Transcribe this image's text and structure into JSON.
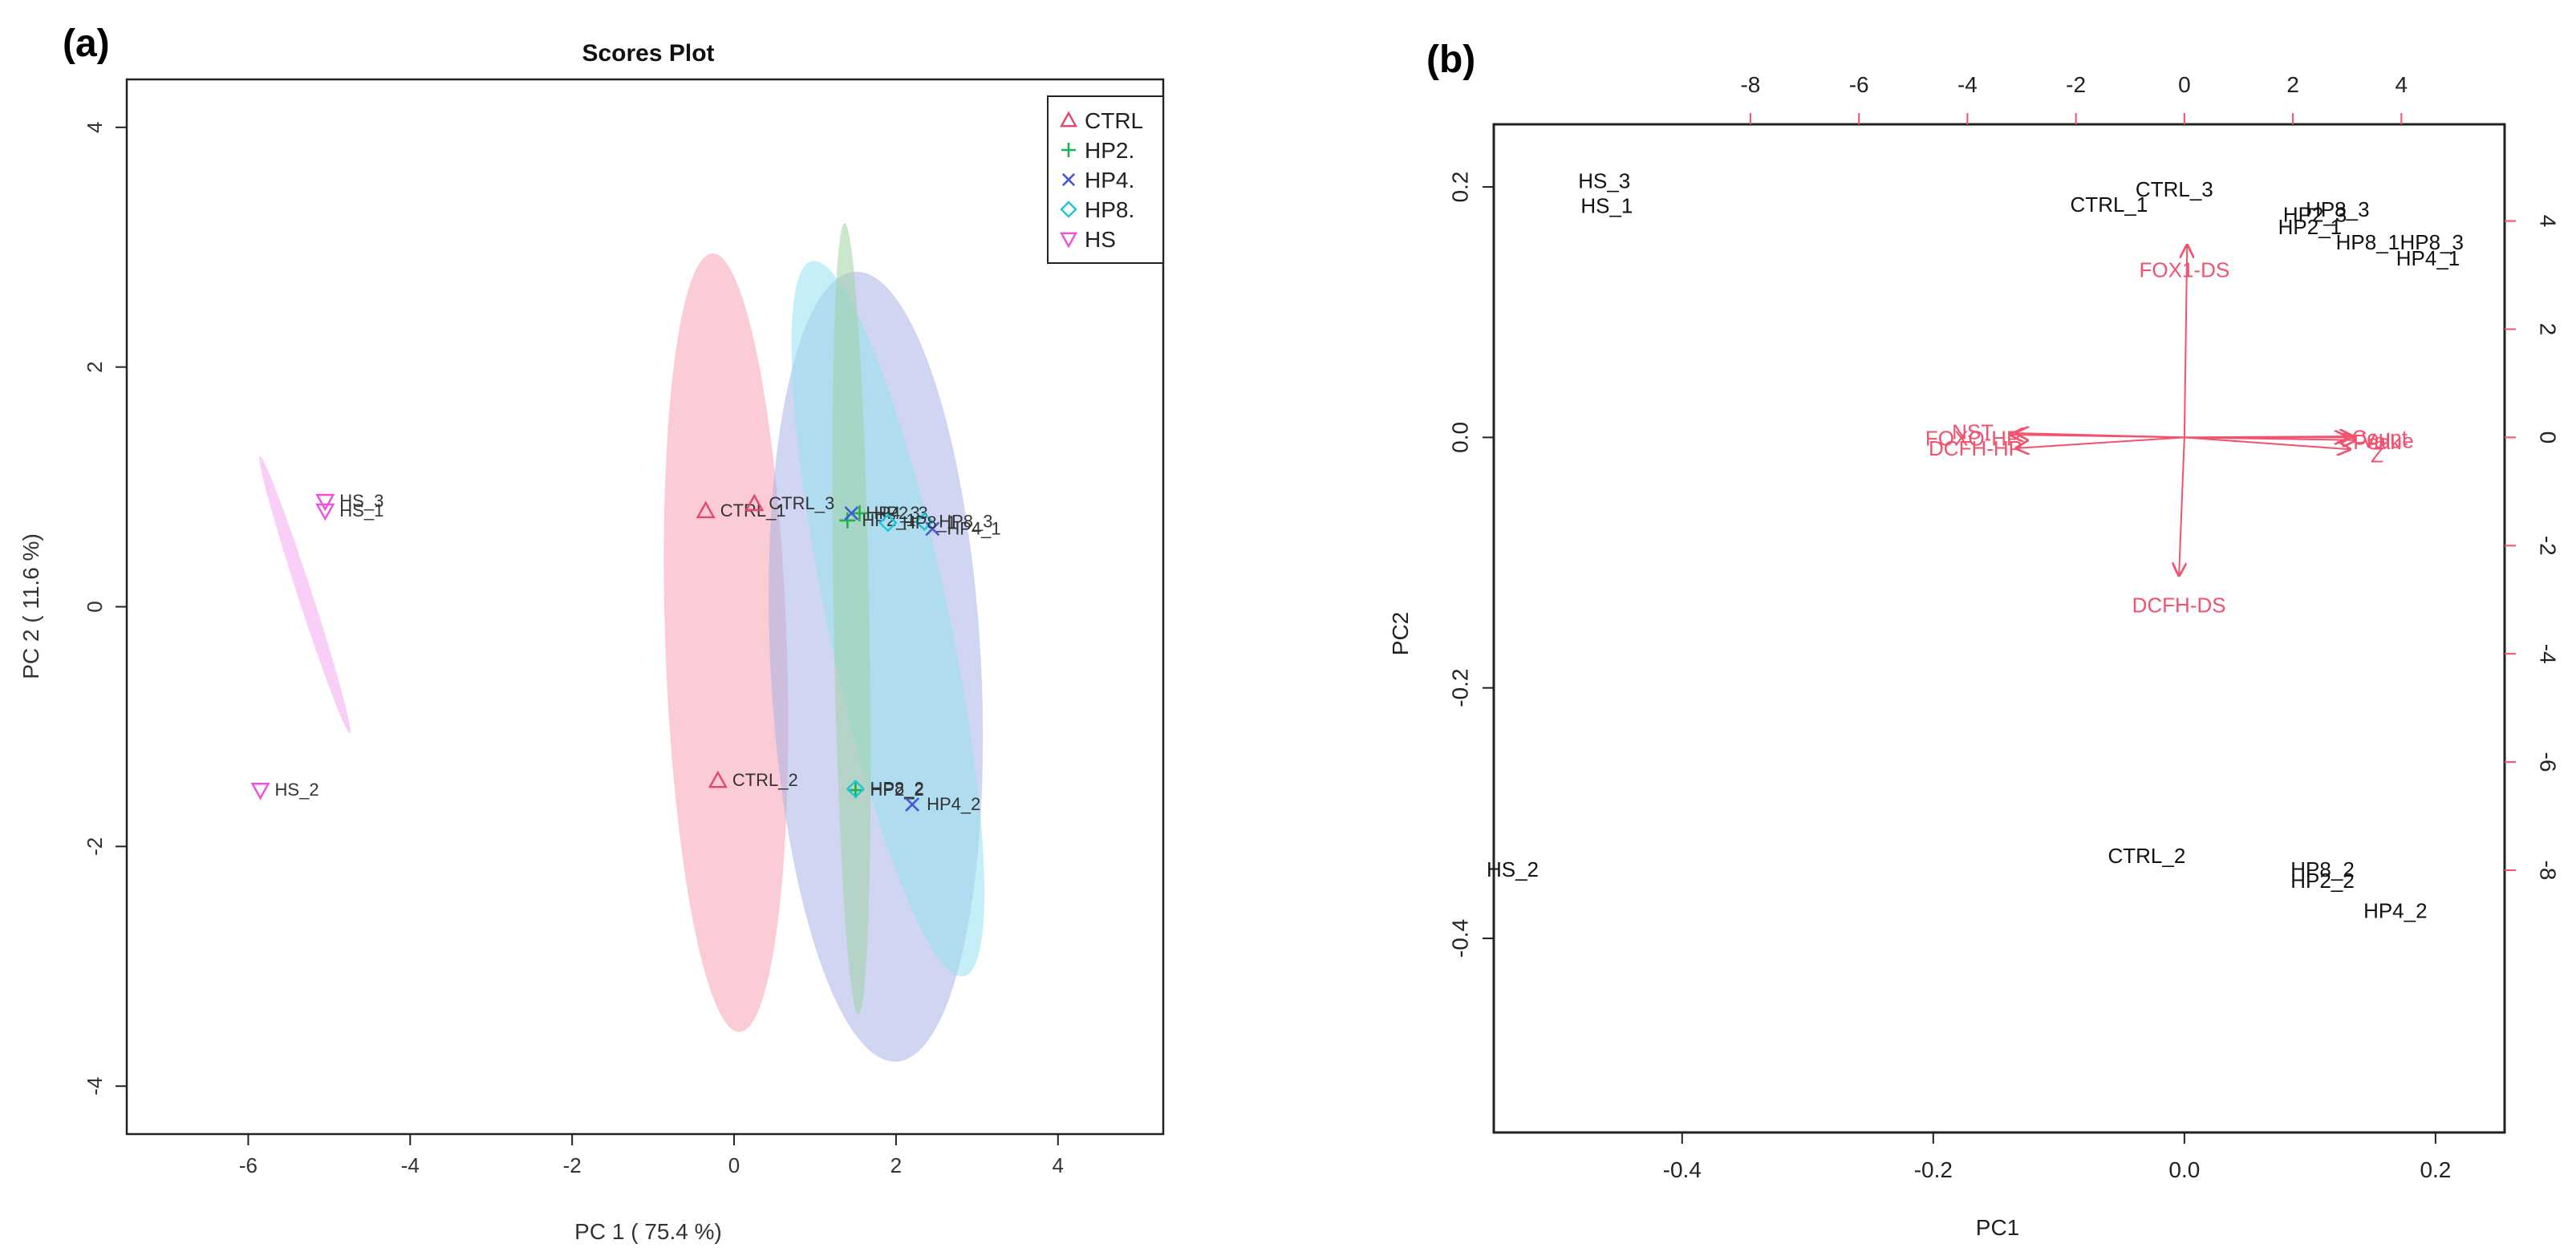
{
  "colors": {
    "CTRL": "#e8456a",
    "HP2": "#1db34a",
    "HP4": "#4358d6",
    "HP8": "#1cc6d6",
    "HS": "#ee4fe0",
    "biplot_red": "#f2526d",
    "ellipse_CTRL": "#f7a3b5",
    "ellipse_HP2": "#9ed4a4",
    "ellipse_HP4": "#a9b2e6",
    "ellipse_HP8": "#96e2ee",
    "ellipse_HS": "#f6a8f0",
    "black": "#111111"
  },
  "chart_data": [
    {
      "type": "scatter",
      "panel_label": "(a)",
      "title": "Scores Plot",
      "xlabel": "PC 1 ( 75.4 %)",
      "ylabel": "PC 2 ( 11.6 %)",
      "xlim": [
        -7.5,
        5.3
      ],
      "ylim": [
        -4.4,
        4.4
      ],
      "xticks": [
        -6,
        -4,
        -2,
        0,
        2,
        4
      ],
      "yticks": [
        -4,
        -2,
        0,
        2,
        4
      ],
      "grid": false,
      "legend_position": "top-right",
      "legend": [
        {
          "label": "CTRL",
          "symbol": "triangle-up",
          "group": "CTRL"
        },
        {
          "label": "HP2.",
          "symbol": "plus",
          "group": "HP2"
        },
        {
          "label": "HP4.",
          "symbol": "cross",
          "group": "HP4"
        },
        {
          "label": "HP8.",
          "symbol": "diamond",
          "group": "HP8"
        },
        {
          "label": "HS",
          "symbol": "triangle-down",
          "group": "HS"
        }
      ],
      "ellipses": [
        {
          "group": "HS",
          "cx": -5.3,
          "cy": 0.1,
          "rx": 1.8,
          "ry": 0.06,
          "angle_deg": 72
        },
        {
          "group": "CTRL",
          "cx": -0.1,
          "cy": -0.3,
          "rx": 0.75,
          "ry": 3.25,
          "angle_deg": -2
        },
        {
          "group": "HP4",
          "cx": 1.75,
          "cy": -0.5,
          "rx": 1.3,
          "ry": 3.3,
          "angle_deg": -3
        },
        {
          "group": "HP8",
          "cx": 1.9,
          "cy": -0.1,
          "rx": 0.75,
          "ry": 3.05,
          "angle_deg": -12
        },
        {
          "group": "HP2",
          "cx": 1.45,
          "cy": -0.1,
          "rx": 0.22,
          "ry": 3.3,
          "angle_deg": -1
        }
      ],
      "points": [
        {
          "label": "HS_3",
          "x": -5.05,
          "y": 0.88,
          "group": "HS",
          "symbol": "triangle-down"
        },
        {
          "label": "HS_1",
          "x": -5.05,
          "y": 0.8,
          "group": "HS",
          "symbol": "triangle-down"
        },
        {
          "label": "HS_2",
          "x": -5.85,
          "y": -1.53,
          "group": "HS",
          "symbol": "triangle-down"
        },
        {
          "label": "CTRL_1",
          "x": -0.35,
          "y": 0.8,
          "group": "CTRL",
          "symbol": "triangle-up"
        },
        {
          "label": "CTRL_3",
          "x": 0.25,
          "y": 0.86,
          "group": "CTRL",
          "symbol": "triangle-up"
        },
        {
          "label": "CTRL_2",
          "x": -0.2,
          "y": -1.45,
          "group": "CTRL",
          "symbol": "triangle-up"
        },
        {
          "label": "HP2_3",
          "x": 1.55,
          "y": 0.78,
          "group": "HP2",
          "symbol": "plus"
        },
        {
          "label": "HP2_1",
          "x": 1.4,
          "y": 0.72,
          "group": "HP2",
          "symbol": "plus"
        },
        {
          "label": "HP2_2",
          "x": 1.5,
          "y": -1.53,
          "group": "HP2",
          "symbol": "plus"
        },
        {
          "label": "HP4_3",
          "x": 1.45,
          "y": 0.78,
          "group": "HP4",
          "symbol": "cross"
        },
        {
          "label": "HP4_1",
          "x": 2.45,
          "y": 0.65,
          "group": "HP4",
          "symbol": "cross"
        },
        {
          "label": "HP4_2",
          "x": 2.2,
          "y": -1.65,
          "group": "HP4",
          "symbol": "cross"
        },
        {
          "label": "HP8_3",
          "x": 2.35,
          "y": 0.71,
          "group": "HP8",
          "symbol": "diamond"
        },
        {
          "label": "HP8_1",
          "x": 1.9,
          "y": 0.7,
          "group": "HP8",
          "symbol": "diamond"
        },
        {
          "label": "HP8_2",
          "x": 1.5,
          "y": -1.52,
          "group": "HP8",
          "symbol": "diamond"
        }
      ]
    },
    {
      "type": "scatter",
      "subtype": "biplot",
      "panel_label": "(b)",
      "title": "",
      "xlabel": "PC1",
      "ylabel": "PC2",
      "xlim": [
        -0.55,
        0.255
      ],
      "ylim": [
        -0.555,
        0.25
      ],
      "xticks": [
        -0.4,
        -0.2,
        0.0,
        0.2
      ],
      "yticks": [
        -0.4,
        -0.2,
        0.0,
        0.2
      ],
      "top_ticks": [
        -8,
        -6,
        -4,
        -2,
        0,
        2,
        4
      ],
      "right_ticks": [
        -8,
        -6,
        -4,
        -2,
        0,
        2,
        4
      ],
      "secondary_scale": 0.0432,
      "grid": false,
      "points": [
        {
          "label": "HS_3",
          "x": -0.462,
          "y": 0.205
        },
        {
          "label": "HS_1",
          "x": -0.46,
          "y": 0.185
        },
        {
          "label": "HS_2",
          "x": -0.535,
          "y": -0.345
        },
        {
          "label": "CTRL_3",
          "x": -0.008,
          "y": 0.198
        },
        {
          "label": "CTRL_1",
          "x": -0.06,
          "y": 0.186
        },
        {
          "label": "CTRL_2",
          "x": -0.03,
          "y": -0.334
        },
        {
          "label": "HP2_3",
          "x": 0.104,
          "y": 0.178
        },
        {
          "label": "HP8_3",
          "x": 0.122,
          "y": 0.182
        },
        {
          "label": "HP2_1",
          "x": 0.1,
          "y": 0.168
        },
        {
          "label": "HP8_1",
          "x": 0.146,
          "y": 0.156
        },
        {
          "label": "HP8_3",
          "x": 0.197,
          "y": 0.156
        },
        {
          "label": "HP4_1",
          "x": 0.194,
          "y": 0.143
        },
        {
          "label": "HP8_2",
          "x": 0.11,
          "y": -0.345
        },
        {
          "label": "HP2_2",
          "x": 0.11,
          "y": -0.354
        },
        {
          "label": "HP4_2",
          "x": 0.168,
          "y": -0.378
        }
      ],
      "loadings": [
        {
          "label": "FOX1-DS",
          "x": 0.05,
          "y": 3.55
        },
        {
          "label": "DCFH-DS",
          "x": -0.1,
          "y": -2.55
        },
        {
          "label": "NST",
          "x": -3.1,
          "y": 0.08
        },
        {
          "label": "FOXO-HP",
          "x": -3.2,
          "y": 0.05
        },
        {
          "label": "DCFH-HP",
          "x": -3.1,
          "y": -0.2
        },
        {
          "label": "Peak",
          "x": 3.0,
          "y": 0.0
        },
        {
          "label": "Z",
          "x": 3.05,
          "y": -0.22
        },
        {
          "label": "Count",
          "x": 3.1,
          "y": 0.02
        },
        {
          "label": "Value",
          "x": 3.15,
          "y": -0.05
        }
      ],
      "loading_label_texts": [
        "FOX1-DS",
        "DCFH-DS",
        "NST",
        "FOXO-HP",
        "DCFH-HP",
        "Peak",
        "Count",
        "Value",
        "Z"
      ]
    }
  ]
}
